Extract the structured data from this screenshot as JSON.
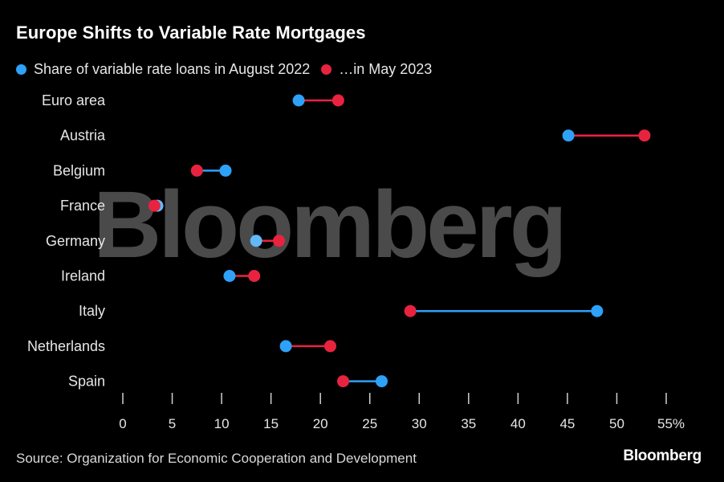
{
  "title": "Europe Shifts to Variable Rate Mortgages",
  "legend": {
    "aug": "Share of variable rate loans in August 2022",
    "may": "…in May 2023"
  },
  "colors": {
    "aug": "#2ea1f8",
    "may": "#e8233f",
    "aug_light": "#63b9f7"
  },
  "watermark": "Bloomberg",
  "source": "Source: Organization for Economic Cooperation and Development",
  "brand": "Bloomberg",
  "chart_data": {
    "type": "dumbbell",
    "title": "Europe Shifts to Variable Rate Mortgages",
    "categories": [
      "Euro area",
      "Austria",
      "Belgium",
      "France",
      "Germany",
      "Ireland",
      "Italy",
      "Netherlands",
      "Spain"
    ],
    "series": [
      {
        "name": "Share of variable rate loans in August 2022",
        "values": [
          17.8,
          45.1,
          10.4,
          3.5,
          13.5,
          10.8,
          48.0,
          16.5,
          26.2
        ]
      },
      {
        "name": "…in May 2023",
        "values": [
          21.8,
          52.8,
          7.5,
          3.2,
          15.8,
          13.3,
          29.1,
          21.0,
          22.3
        ]
      }
    ],
    "xticks": [
      "0",
      "5",
      "10",
      "15",
      "20",
      "25",
      "30",
      "35",
      "40",
      "45",
      "50",
      "55%"
    ],
    "xlim": [
      0,
      55
    ],
    "xlabel": "",
    "ylabel": ""
  }
}
